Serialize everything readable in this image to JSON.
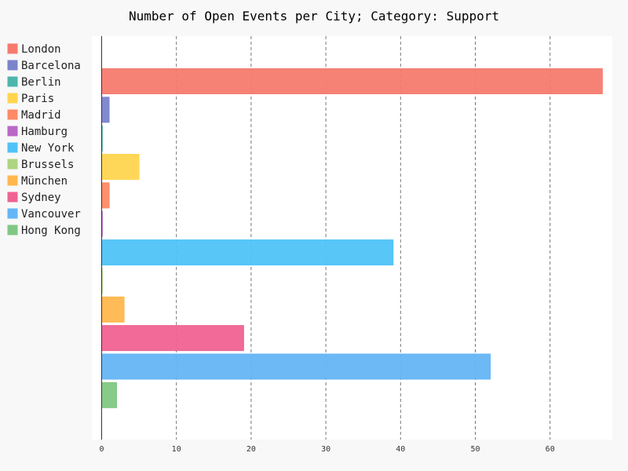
{
  "chart_data": {
    "type": "bar",
    "orientation": "horizontal",
    "title": "Number of Open Events per City; Category: Support",
    "xlabel": "",
    "ylabel": "",
    "xlim": [
      0,
      68
    ],
    "x_ticks": [
      0,
      10,
      20,
      30,
      40,
      50,
      60
    ],
    "grid": "vertical-dashed",
    "legend_position": "left",
    "series": [
      {
        "name": "London",
        "value": 67,
        "color": "#f67b6e"
      },
      {
        "name": "Barcelona",
        "value": 1,
        "color": "#7a84cc"
      },
      {
        "name": "Berlin",
        "value": 0,
        "color": "#4db6ac"
      },
      {
        "name": "Paris",
        "value": 5,
        "color": "#ffd54f"
      },
      {
        "name": "Madrid",
        "value": 1,
        "color": "#ff8a65"
      },
      {
        "name": "Hamburg",
        "value": 0,
        "color": "#ba68c8"
      },
      {
        "name": "New York",
        "value": 39,
        "color": "#4fc3f7"
      },
      {
        "name": "Brussels",
        "value": 0,
        "color": "#aed581"
      },
      {
        "name": "München",
        "value": 3,
        "color": "#ffb74d"
      },
      {
        "name": "Sydney",
        "value": 19,
        "color": "#f06292"
      },
      {
        "name": "Vancouver",
        "value": 52,
        "color": "#64b5f6"
      },
      {
        "name": "Hong Kong",
        "value": 2,
        "color": "#81c784"
      }
    ]
  }
}
